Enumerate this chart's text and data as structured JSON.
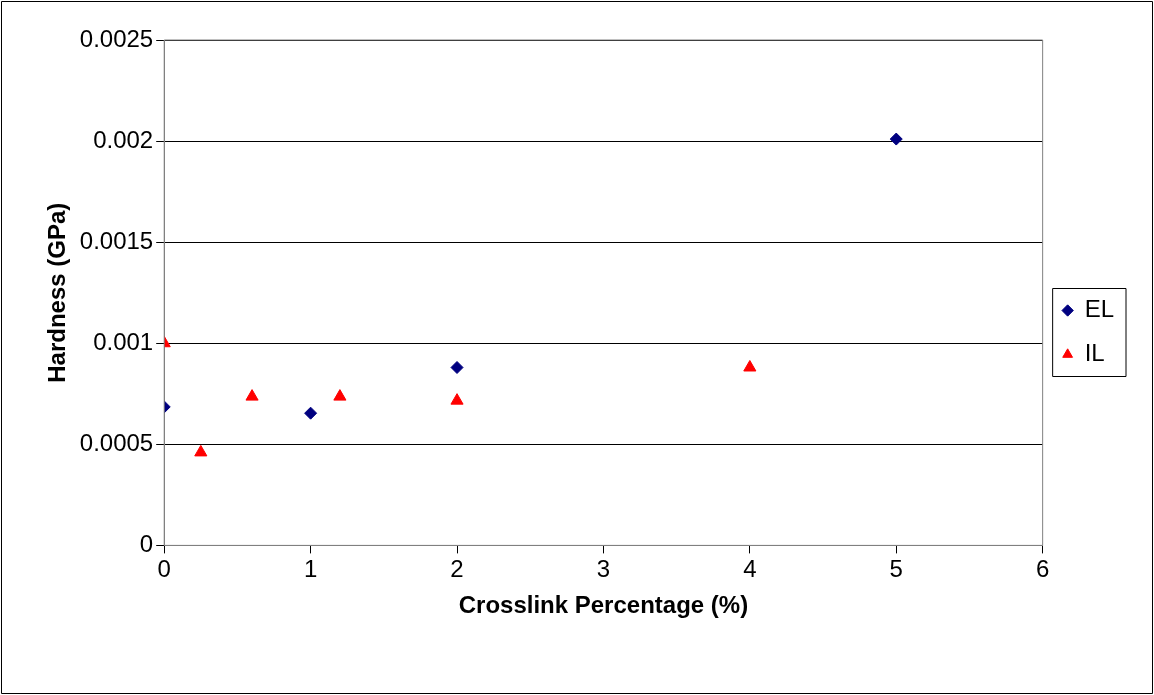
{
  "chart_data": {
    "type": "scatter",
    "xlabel": "Crosslink Percentage (%)",
    "ylabel": "Hardness (GPa)",
    "xlim": [
      0,
      6
    ],
    "xticks": [
      0,
      1,
      2,
      3,
      4,
      5,
      6
    ],
    "ylim": [
      0,
      0.0025
    ],
    "yticks": [
      0,
      0.0005,
      0.001,
      0.0015,
      0.002,
      0.0025
    ],
    "grid": "y",
    "legend": "right",
    "series": [
      {
        "name": "EL",
        "color": "#000080",
        "marker": "diamond",
        "x": [
          0,
          1,
          2,
          5
        ],
        "values": [
          0.000685,
          0.000654,
          0.00088,
          0.00201
        ]
      },
      {
        "name": "IL",
        "color": "#ff0000",
        "marker": "triangle",
        "x": [
          0,
          0.25,
          0.6,
          1.2,
          2,
          4
        ],
        "values": [
          0.001,
          0.00046,
          0.000736,
          0.000736,
          0.000716,
          0.00088
        ]
      }
    ]
  }
}
